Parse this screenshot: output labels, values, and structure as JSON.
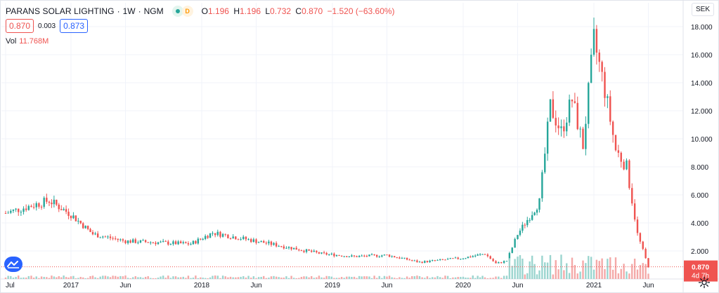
{
  "header": {
    "symbol": "PARANS SOLAR LIGHTING",
    "interval": "1W",
    "exchange": "NGM",
    "marker_label": "D",
    "open_k": "O",
    "open_v": "1.196",
    "high_k": "H",
    "high_v": "1.196",
    "low_k": "L",
    "low_v": "0.732",
    "close_k": "C",
    "close_v": "0.870",
    "change": "−1.520 (−63.60%)"
  },
  "quotes": {
    "bid": "0.870",
    "spread": "0.003",
    "ask": "0.873"
  },
  "volume": {
    "label": "Vol",
    "value": "11.768M"
  },
  "currency": "SEK",
  "price_label": {
    "value": "0.870",
    "countdown": "4d 7h"
  },
  "colors": {
    "up": "#26a69a",
    "down": "#ef5350",
    "up_vol": "#9bd5cf",
    "down_vol": "#f4a9a8",
    "grid": "#f0f3fa"
  },
  "icons": {
    "logo": "tradingview-logo-icon",
    "settings": "gear-icon"
  },
  "chart_data": {
    "type": "candlestick",
    "interval": "weekly",
    "y_axis": {
      "ticks": [
        "2.000",
        "4.000",
        "6.000",
        "8.000",
        "10.000",
        "12.000",
        "14.000",
        "16.000",
        "18.000"
      ],
      "ylim": [
        0,
        19
      ],
      "position": "right"
    },
    "x_axis": {
      "ticks": [
        "Jul",
        "2017",
        "Jun",
        "2018",
        "Jun",
        "2019",
        "Jun",
        "2020",
        "Jun",
        "2021",
        "Jun"
      ]
    },
    "last_price": 0.87,
    "grid": true,
    "anchors": [
      {
        "date": "2016-07",
        "close": 4.7
      },
      {
        "date": "2016-11",
        "close": 5.6
      },
      {
        "date": "2017-01",
        "close": 4.6
      },
      {
        "date": "2017-03",
        "close": 3.2
      },
      {
        "date": "2017-06",
        "close": 2.7
      },
      {
        "date": "2017-12",
        "close": 2.5
      },
      {
        "date": "2018-02",
        "close": 3.3
      },
      {
        "date": "2018-06",
        "close": 2.7
      },
      {
        "date": "2018-12",
        "close": 1.8
      },
      {
        "date": "2019-03",
        "close": 1.6
      },
      {
        "date": "2019-06",
        "close": 1.7
      },
      {
        "date": "2019-09",
        "close": 1.2
      },
      {
        "date": "2020-01",
        "close": 1.5
      },
      {
        "date": "2020-03",
        "close": 1.8
      },
      {
        "date": "2020-04",
        "close": 1.1
      },
      {
        "date": "2020-05",
        "close": 1.3
      },
      {
        "date": "2020-06",
        "close": 3.2
      },
      {
        "date": "2020-08",
        "close": 5.5
      },
      {
        "date": "2020-09",
        "close": 12.3
      },
      {
        "date": "2020-10",
        "close": 10.5
      },
      {
        "date": "2020-11",
        "close": 12.8
      },
      {
        "date": "2020-12",
        "close": 9.5
      },
      {
        "date": "2021-01",
        "close": 17.0
      },
      {
        "date": "2021-02",
        "close": 13.5
      },
      {
        "date": "2021-03",
        "close": 9.2
      },
      {
        "date": "2021-04",
        "close": 8.0
      },
      {
        "date": "2021-05",
        "close": 3.2
      },
      {
        "date": "2021-06",
        "close": 0.87
      }
    ]
  }
}
